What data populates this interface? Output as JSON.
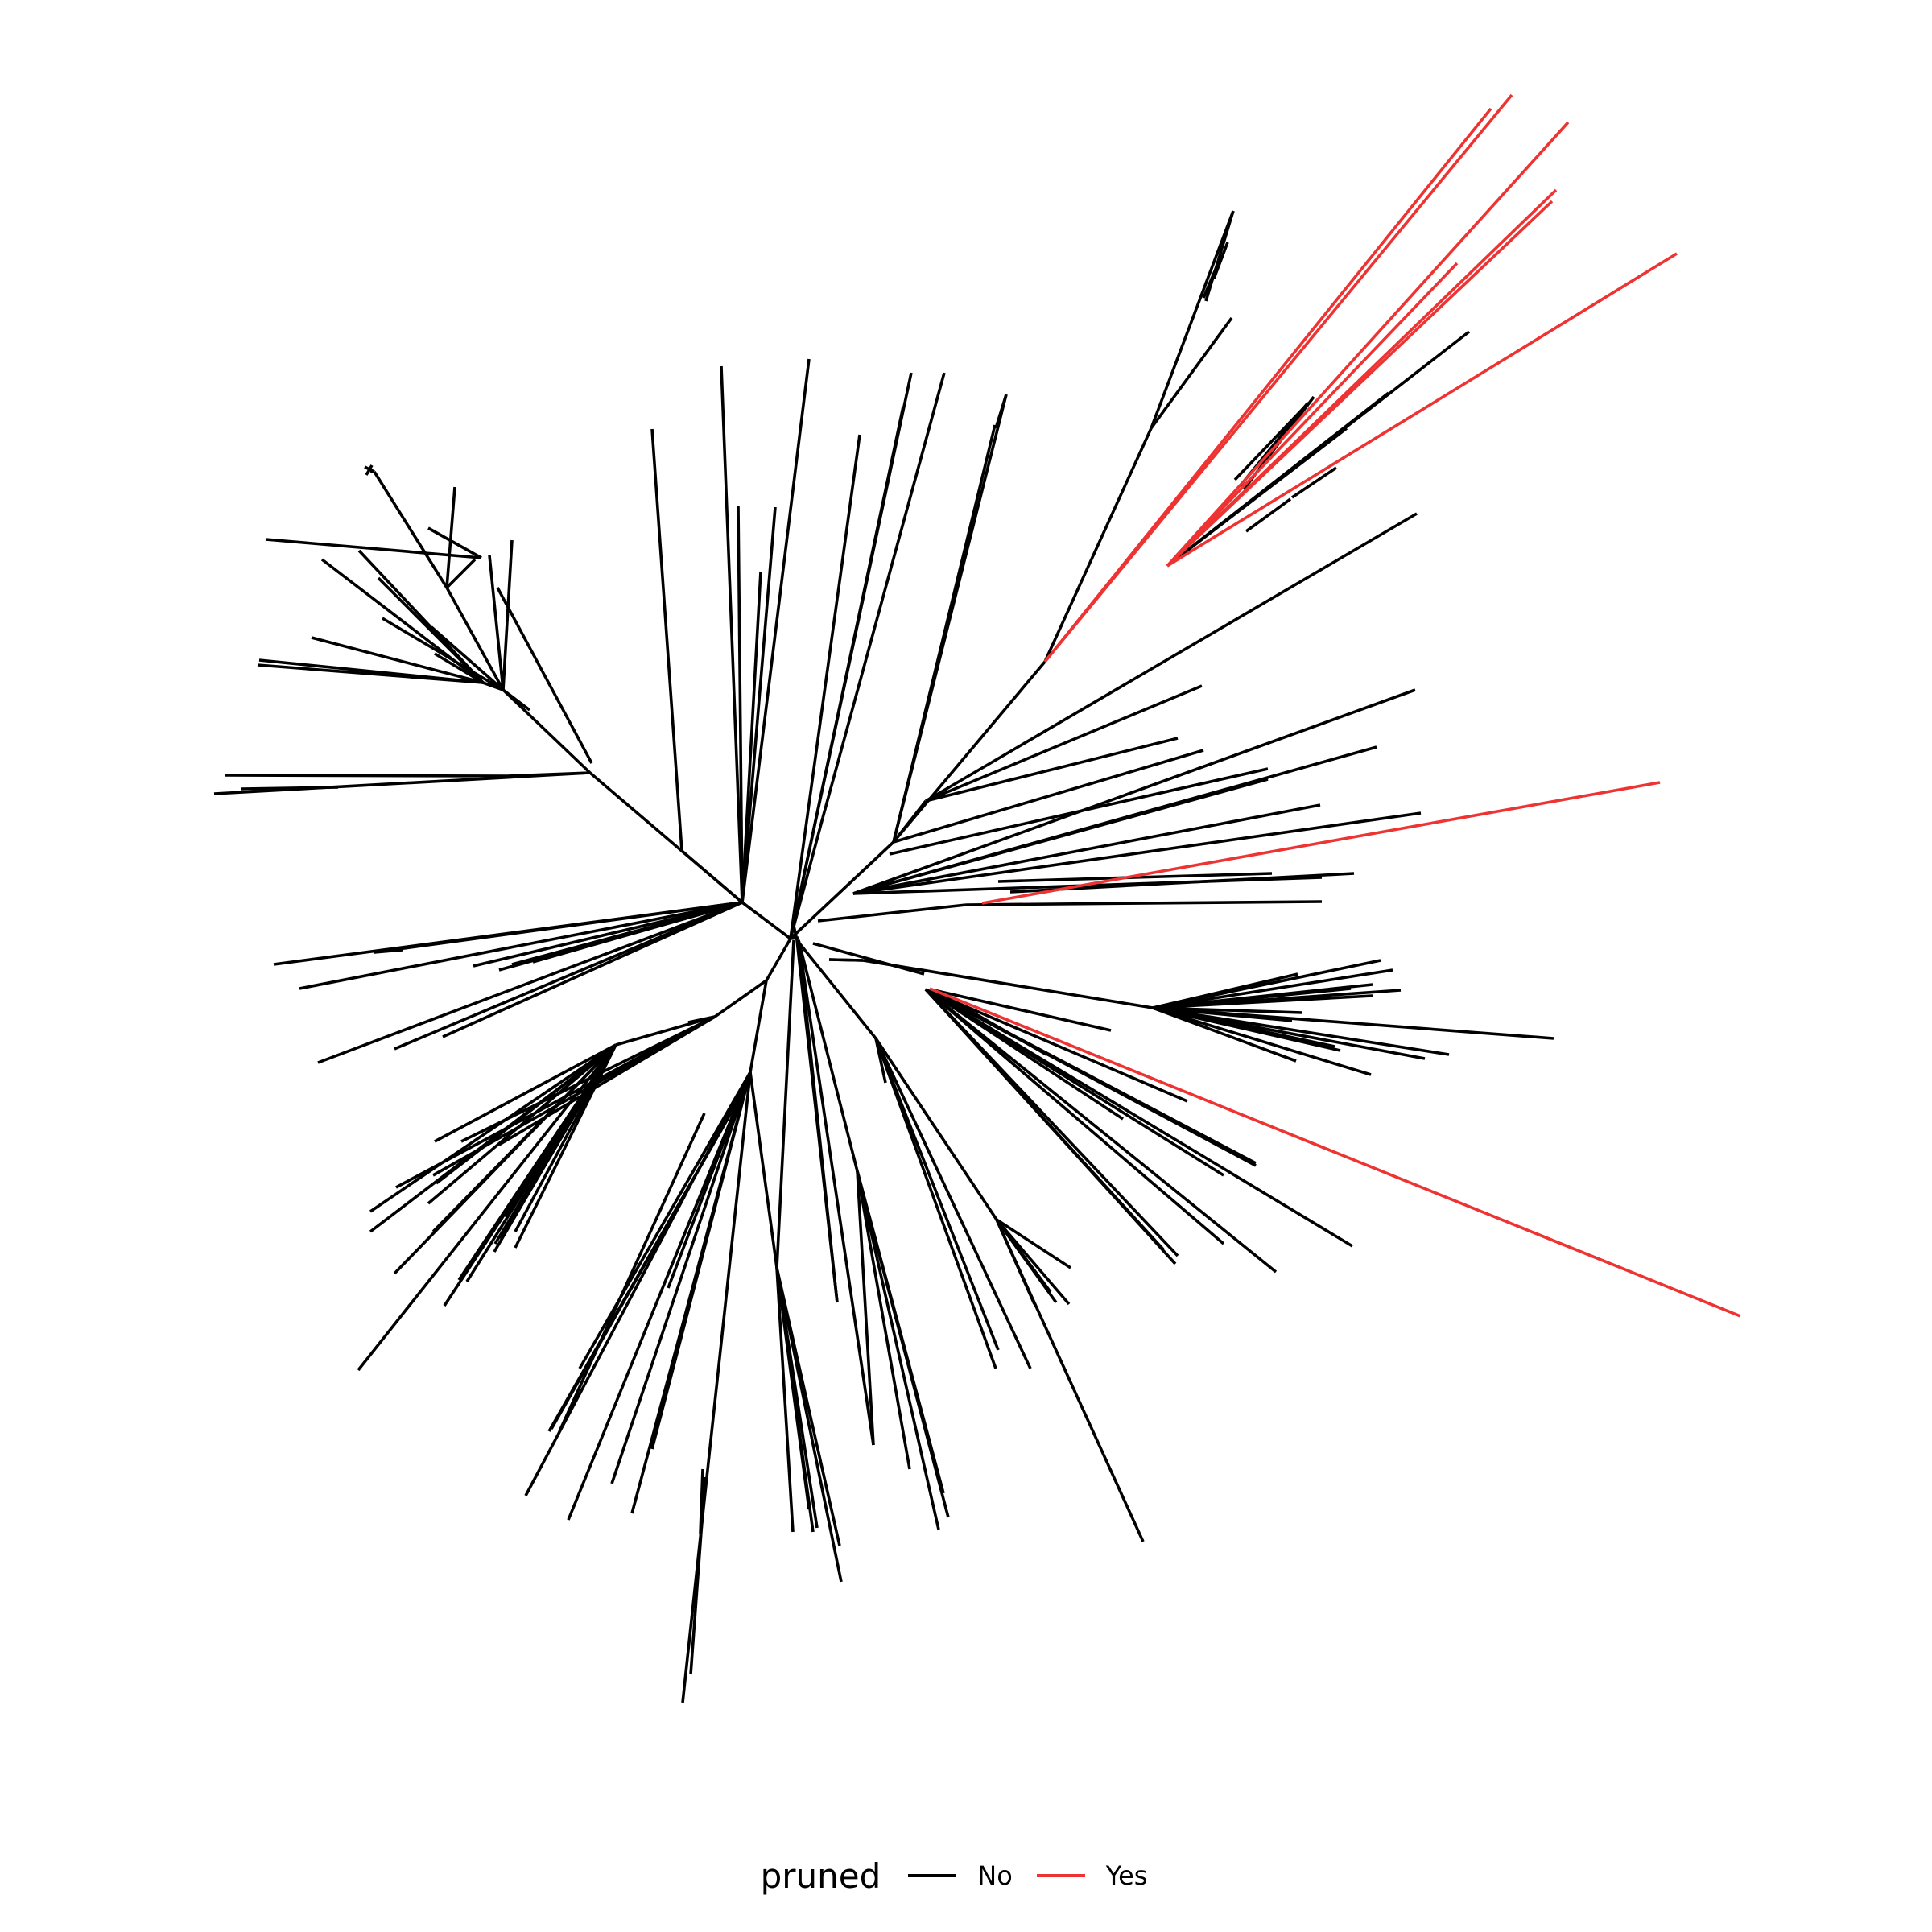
{
  "legend": {
    "title": "pruned",
    "items": [
      {
        "label": "No",
        "color": "#000000"
      },
      {
        "label": "Yes",
        "color": "#ee3333"
      }
    ]
  }
}
